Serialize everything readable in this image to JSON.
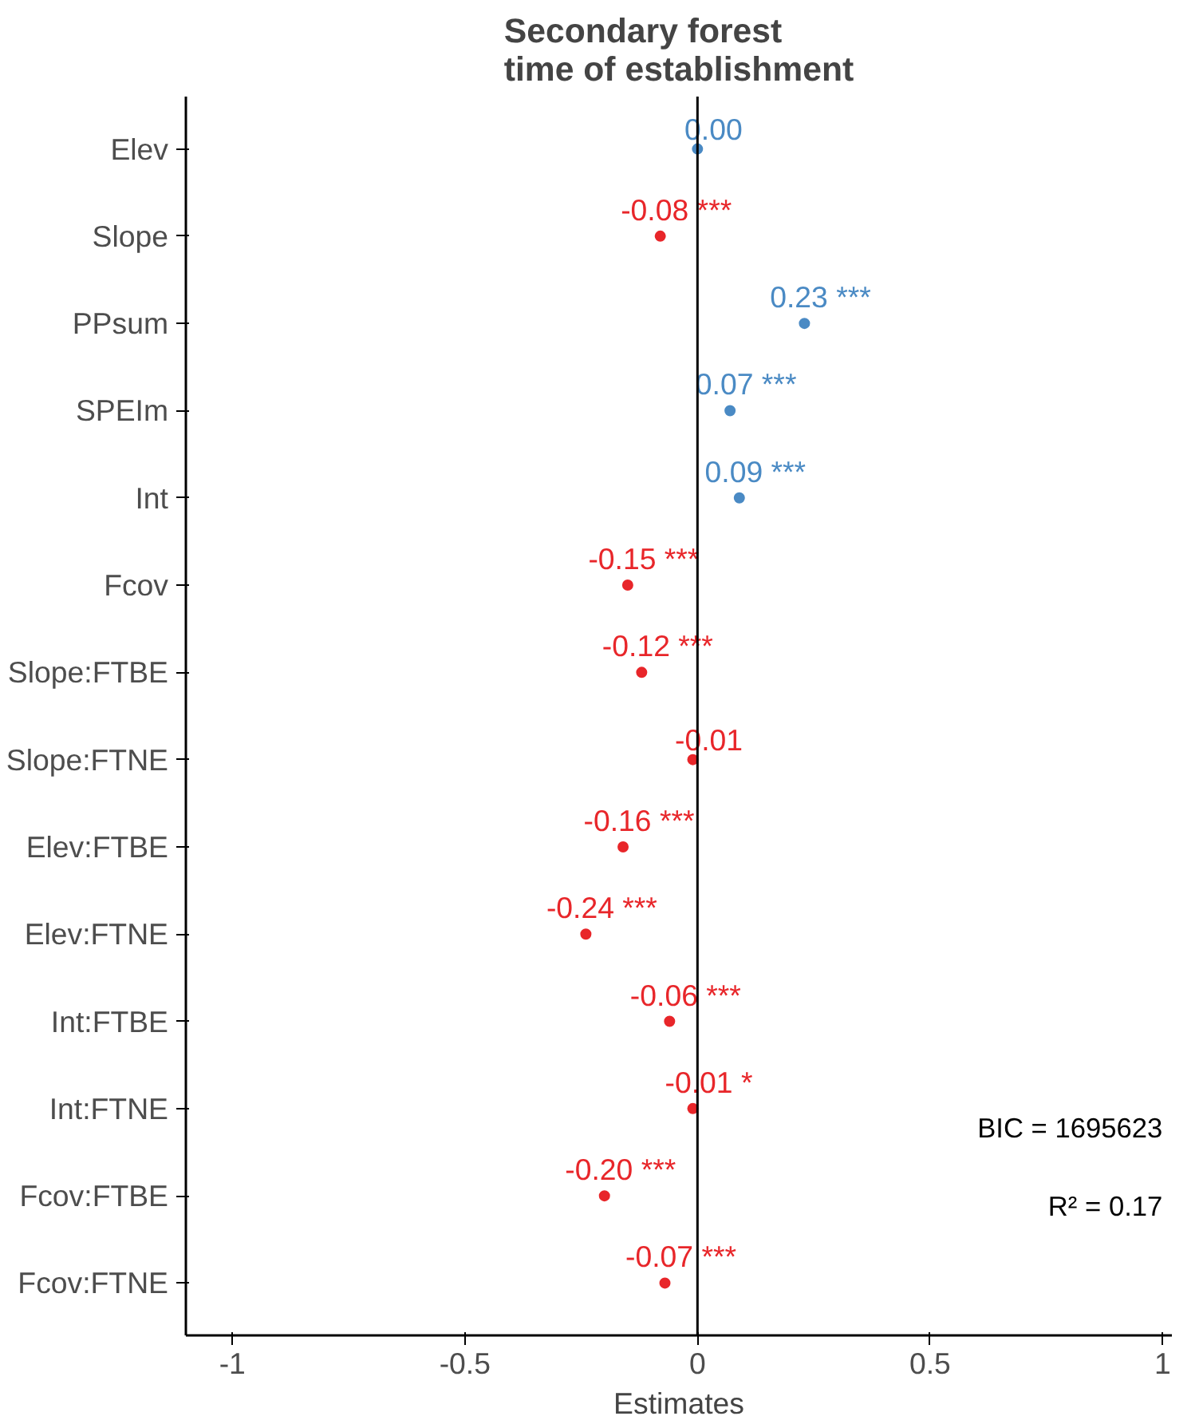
{
  "chart_data": {
    "type": "scatter",
    "orientation": "horizontal",
    "title": "Secondary forest\ntime of establishment",
    "xlabel": "Estimates",
    "categories": [
      "Elev",
      "Slope",
      "PPsum",
      "SPEIm",
      "Int",
      "Fcov",
      "Slope:FTBE",
      "Slope:FTNE",
      "Elev:FTBE",
      "Elev:FTNE",
      "Int:FTBE",
      "Int:FTNE",
      "Fcov:FTBE",
      "Fcov:FTNE"
    ],
    "values": [
      0.0,
      -0.08,
      0.23,
      0.07,
      0.09,
      -0.15,
      -0.12,
      -0.01,
      -0.16,
      -0.24,
      -0.06,
      -0.01,
      -0.2,
      -0.07
    ],
    "colors": [
      "#4a8ac4",
      "#e8262a",
      "#4a8ac4",
      "#4a8ac4",
      "#4a8ac4",
      "#e8262a",
      "#e8262a",
      "#e8262a",
      "#e8262a",
      "#e8262a",
      "#e8262a",
      "#e8262a",
      "#e8262a",
      "#e8262a"
    ],
    "value_labels": [
      "0.00",
      "-0.08 ***",
      "0.23 ***",
      "0.07 ***",
      "0.09 ***",
      "-0.15 ***",
      "-0.12 ***",
      "-0.01",
      "-0.16 ***",
      "-0.24 ***",
      "-0.06 ***",
      "-0.01 *",
      "-0.20 ***",
      "-0.07 ***"
    ],
    "xlim": [
      -1.1,
      1.02
    ],
    "xticks": [
      {
        "value": -1,
        "label": "-1"
      },
      {
        "value": -0.5,
        "label": "-0.5"
      },
      {
        "value": 0,
        "label": "0"
      },
      {
        "value": 0.5,
        "label": "0.5"
      },
      {
        "value": 1,
        "label": "1"
      }
    ],
    "ref_lines": [
      {
        "axis": "x",
        "value": 0,
        "color": "#000000"
      }
    ],
    "marker": "circle",
    "annotations": [
      "BIC = 1695623",
      "R² = 0.17"
    ]
  }
}
